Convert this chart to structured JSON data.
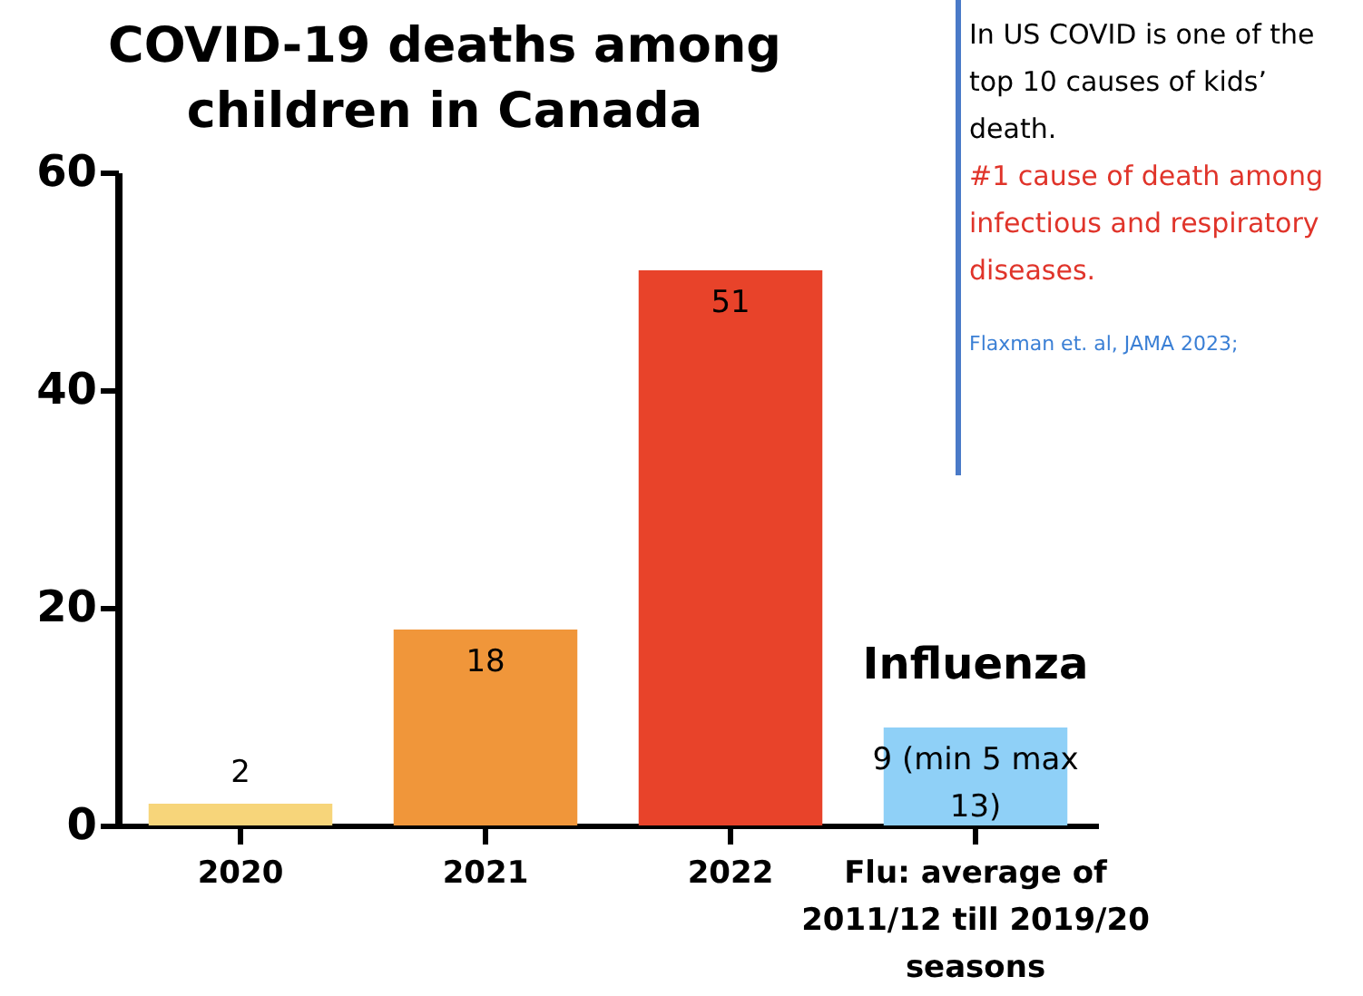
{
  "chart_data": {
    "type": "bar",
    "title": "COVID-19 deaths among children in Canada",
    "categories": [
      "2020",
      "2021",
      "2022",
      "Flu: average of 2011/12 till 2019/20 seasons"
    ],
    "values": [
      2,
      18,
      51,
      9
    ],
    "colors": [
      "#f7d57a",
      "#f0963a",
      "#e8432a",
      "#8fd0f7"
    ],
    "value_labels": [
      "2",
      "18",
      "51",
      "9 (min 5 max 13)"
    ],
    "ylim": [
      0,
      60
    ],
    "yticks": [
      0,
      20,
      40,
      60
    ],
    "grid": false,
    "annotations": [
      {
        "text": "Influenza",
        "x": "Flu: average of 2011/12 till 2019/20 seasons",
        "y": 9
      },
      "In US COVID is one of the top 10 causes of kids’ death.",
      "#1 cause of death among infectious and respiratory diseases.",
      "Flaxman et. al, JAMA 2023;"
    ]
  }
}
